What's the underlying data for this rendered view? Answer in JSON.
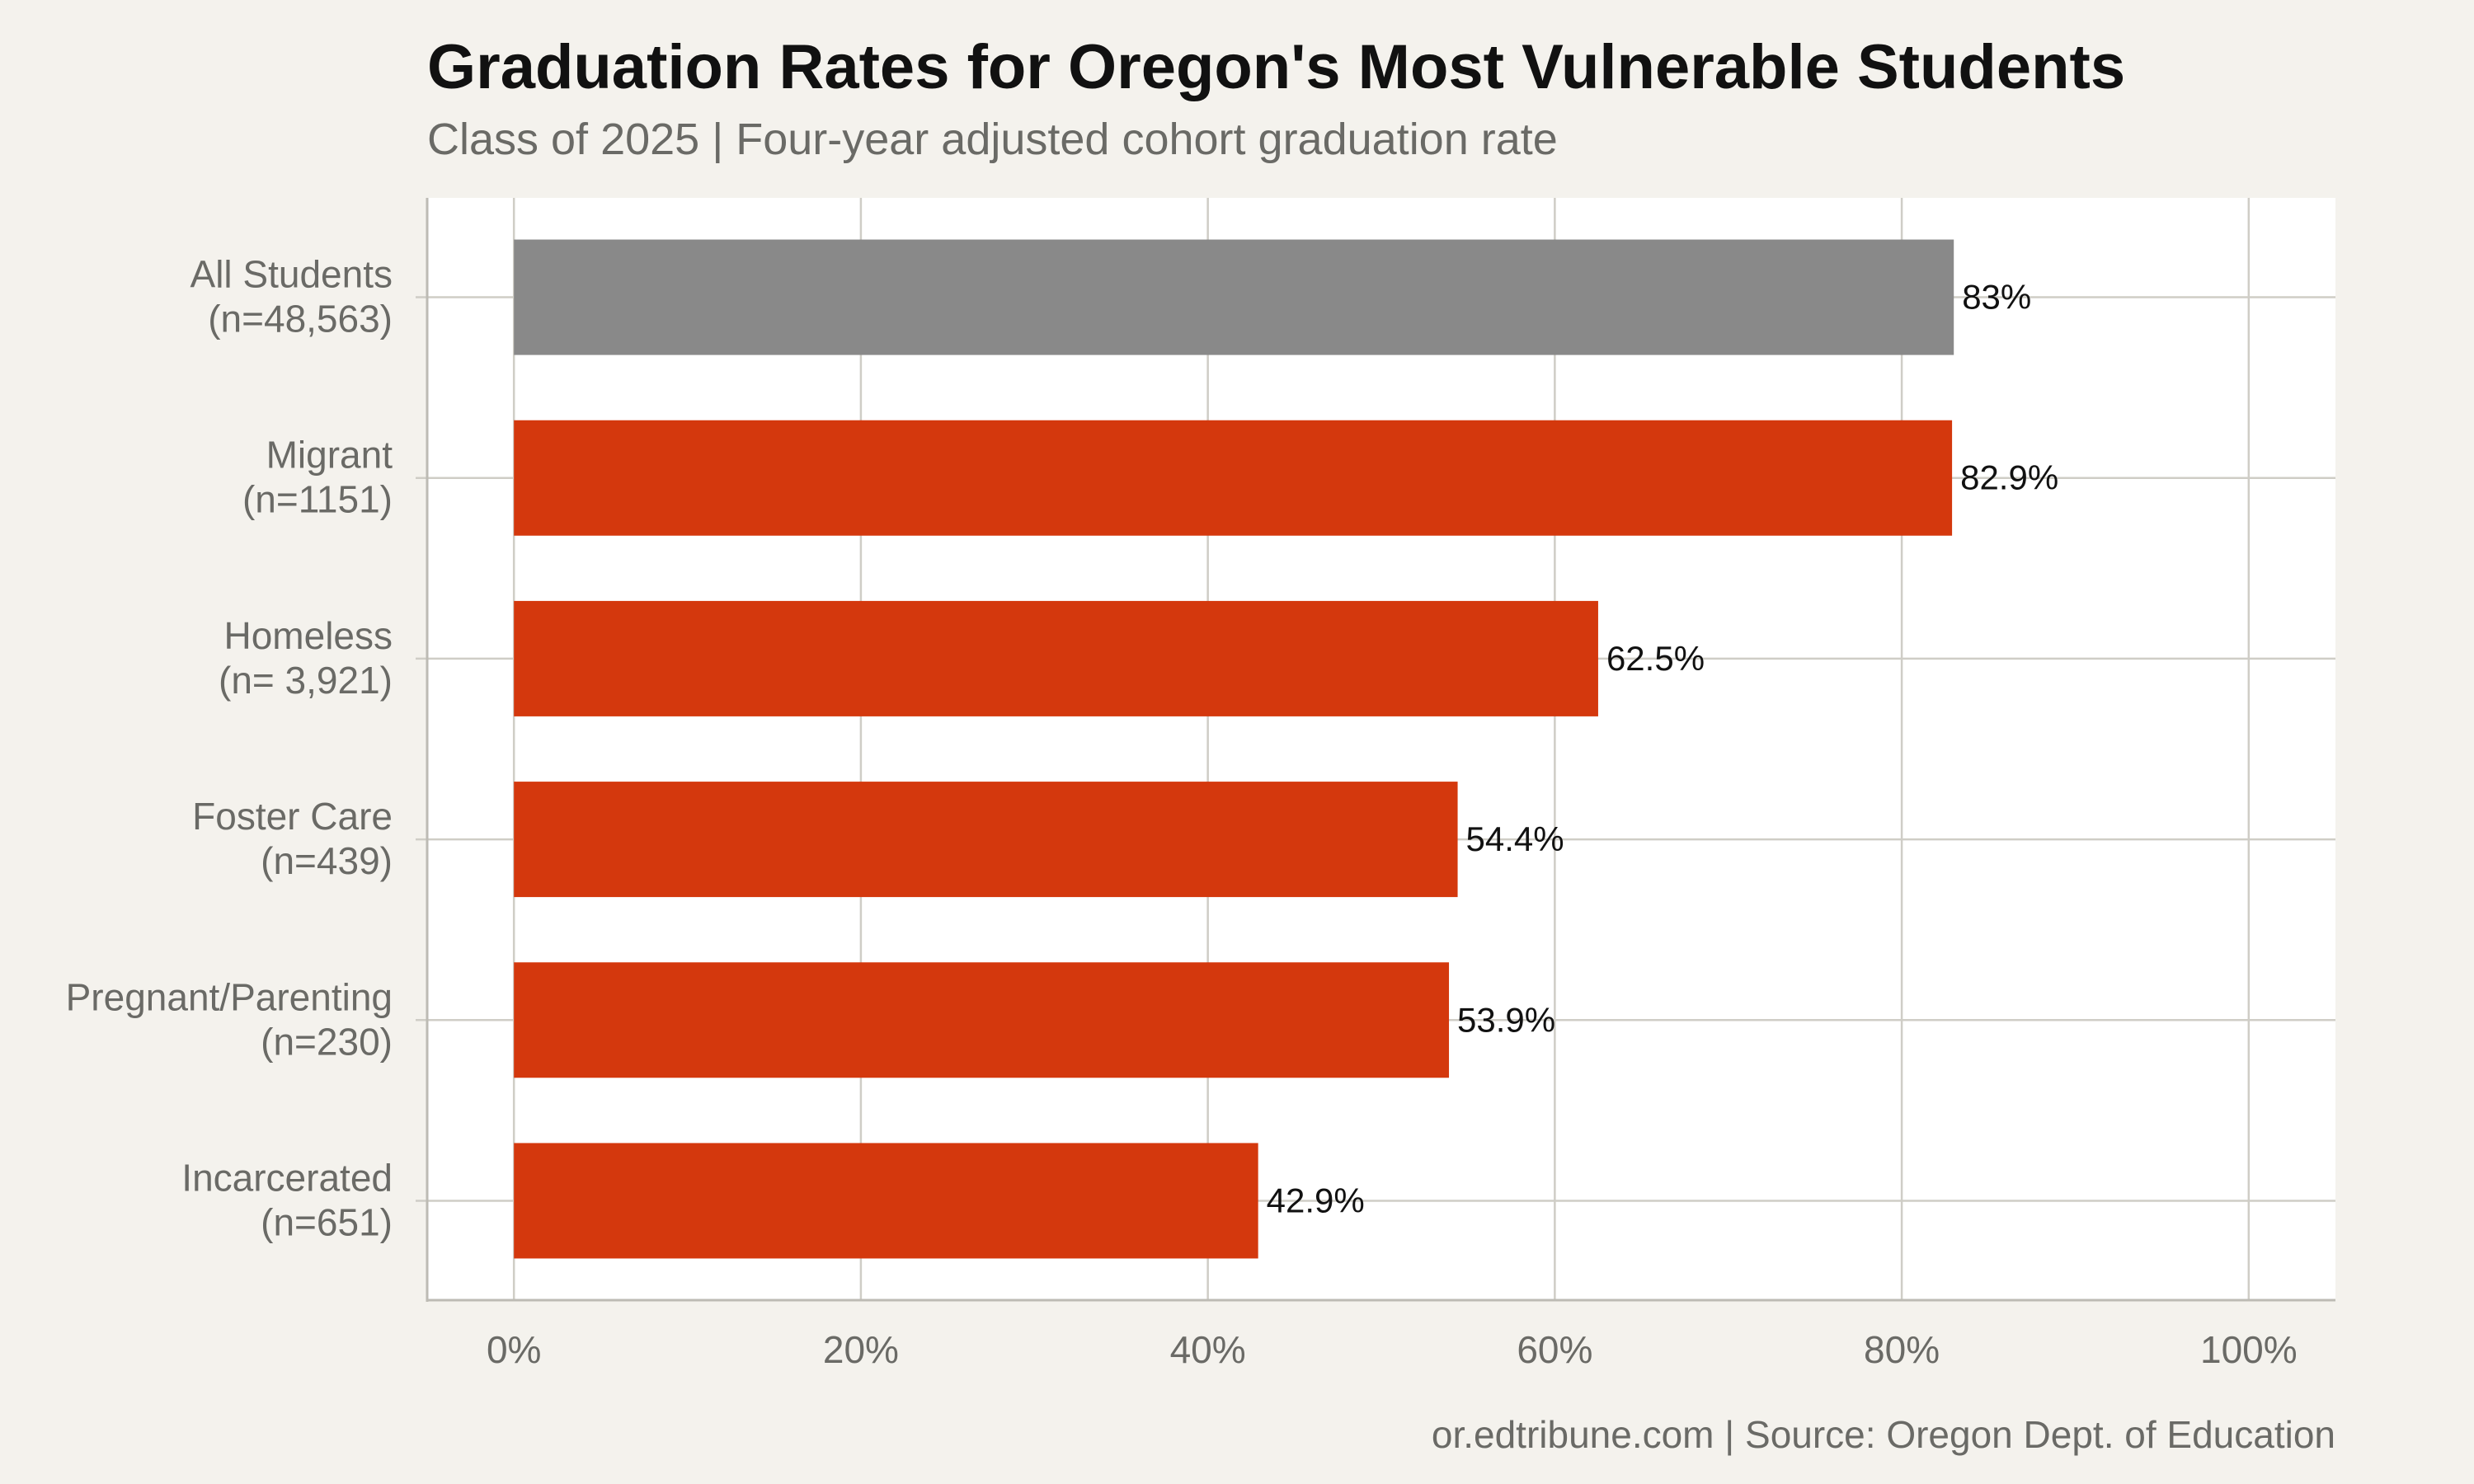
{
  "chart_data": {
    "type": "bar",
    "orientation": "horizontal",
    "title": "Graduation Rates for Oregon's Most Vulnerable Students",
    "subtitle": "Class of 2025 | Four-year adjusted cohort graduation rate",
    "caption": "or.edtribune.com | Source: Oregon Dept. of Education",
    "categories": [
      [
        "All Students",
        "(n=48,563)"
      ],
      [
        "Migrant",
        "(n=1151)"
      ],
      [
        "Homeless",
        "(n= 3,921)"
      ],
      [
        "Foster Care",
        "(n=439)"
      ],
      [
        "Pregnant/Parenting",
        "(n=230)"
      ],
      [
        "Incarcerated",
        "(n=651)"
      ]
    ],
    "values": [
      83,
      82.9,
      62.5,
      54.4,
      53.9,
      42.9
    ],
    "value_labels": [
      "83%",
      "82.9%",
      "62.5%",
      "54.4%",
      "53.9%",
      "42.9%"
    ],
    "bar_colors": [
      "#898989",
      "#D4380D",
      "#D4380D",
      "#D4380D",
      "#D4380D",
      "#D4380D"
    ],
    "xlim": [
      -5,
      105
    ],
    "xticks": [
      0,
      20,
      40,
      60,
      80,
      100
    ],
    "xtick_labels": [
      "0%",
      "20%",
      "40%",
      "60%",
      "80%",
      "100%"
    ],
    "grid": true,
    "legend": "none"
  }
}
